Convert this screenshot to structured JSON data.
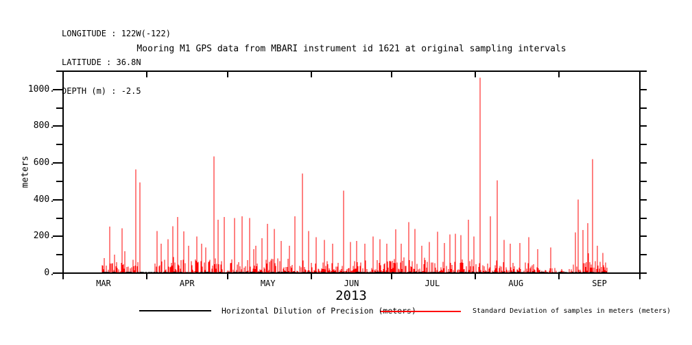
{
  "header": {
    "longitude": "LONGITUDE : 122W(-122)",
    "latitude": "LATITUDE : 36.8N",
    "depth": "DEPTH (m) : -2.5"
  },
  "colors": {
    "background": "#ffffff",
    "axis": "#000000",
    "hdop_series": "#000000",
    "stddev_series": "#ff0000"
  },
  "chart_data": {
    "type": "line",
    "title": "Mooring M1 GPS data from MBARI instrument id 1621 at original sampling intervals",
    "ylabel": "meters",
    "xlabel": "2013",
    "ylim": [
      0,
      1100
    ],
    "grid": false,
    "legend_position": "bottom",
    "y_ticks": [
      {
        "value": 0,
        "label": "0."
      },
      {
        "value": 200,
        "label": "200."
      },
      {
        "value": 400,
        "label": "400."
      },
      {
        "value": 600,
        "label": "600."
      },
      {
        "value": 800,
        "label": "800."
      },
      {
        "value": 1000,
        "label": "1000."
      }
    ],
    "y_minor_step": 100,
    "x_unit": "days since Mar 1 2013",
    "x_domain_days": [
      0,
      214
    ],
    "month_boundaries_days": [
      0,
      31,
      61,
      92,
      122,
      153,
      184,
      214
    ],
    "months": [
      {
        "label": "MAR",
        "mid_day": 15
      },
      {
        "label": "APR",
        "mid_day": 46
      },
      {
        "label": "MAY",
        "mid_day": 76
      },
      {
        "label": "JUN",
        "mid_day": 107
      },
      {
        "label": "JUL",
        "mid_day": 137
      },
      {
        "label": "AUG",
        "mid_day": 168
      },
      {
        "label": "SEP",
        "mid_day": 199
      }
    ],
    "legend": [
      {
        "label": "Horizontal Dilution of Precision (meters)",
        "color": "#000000"
      },
      {
        "label": "Standard Deviation of samples in meters (meters)",
        "color": "#ff0000"
      }
    ],
    "series": [
      {
        "name": "Horizontal Dilution of Precision (meters)",
        "color": "#000000",
        "style": "flat line hugging zero",
        "start_day": 14.3,
        "end_day": 202,
        "typical_value_m": 4
      },
      {
        "name": "Standard Deviation of samples in meters (meters)",
        "color": "#ff0000",
        "style": "dense vertical spikes from zero",
        "start_day": 14.3,
        "end_day": 202,
        "gaps_days": [
          [
            29.2,
            34
          ]
        ],
        "noise": {
          "seed": 20130315,
          "regions": [
            [
              14.3,
              29.2,
              55
            ],
            [
              34,
              60,
              65
            ],
            [
              60,
              100,
              58
            ],
            [
              100,
              122,
              50
            ],
            [
              122,
              154,
              55
            ],
            [
              154,
              172,
              50
            ],
            [
              172,
              178,
              38
            ],
            [
              178,
              188.5,
              20
            ],
            [
              188.5,
              202,
              45
            ]
          ]
        },
        "peaks_day_meters": [
          [
            17.3,
            253
          ],
          [
            19,
            100
          ],
          [
            21.9,
            245
          ],
          [
            23,
            120
          ],
          [
            26.9,
            565
          ],
          [
            28.5,
            495
          ],
          [
            34.9,
            230
          ],
          [
            36.5,
            160
          ],
          [
            38.9,
            185
          ],
          [
            40.6,
            255
          ],
          [
            42.5,
            305
          ],
          [
            44.8,
            227
          ],
          [
            46.5,
            150
          ],
          [
            49.6,
            200
          ],
          [
            51.5,
            160
          ],
          [
            53,
            140
          ],
          [
            55.9,
            635
          ],
          [
            57.5,
            290
          ],
          [
            59.9,
            305
          ],
          [
            63.5,
            300
          ],
          [
            66.3,
            310
          ],
          [
            69.2,
            300
          ],
          [
            71.5,
            150
          ],
          [
            73.8,
            190
          ],
          [
            75.8,
            268
          ],
          [
            78.5,
            240
          ],
          [
            81,
            175
          ],
          [
            84,
            150
          ],
          [
            86,
            310
          ],
          [
            88.8,
            543
          ],
          [
            91,
            230
          ],
          [
            94,
            195
          ],
          [
            97,
            180
          ],
          [
            100,
            160
          ],
          [
            104.2,
            450
          ],
          [
            106.5,
            170
          ],
          [
            109,
            175
          ],
          [
            112,
            160
          ],
          [
            115,
            200
          ],
          [
            117.5,
            185
          ],
          [
            120,
            160
          ],
          [
            123.4,
            238
          ],
          [
            125.5,
            160
          ],
          [
            128.2,
            277
          ],
          [
            130.5,
            240
          ],
          [
            133,
            150
          ],
          [
            136,
            170
          ],
          [
            139,
            225
          ],
          [
            141.5,
            165
          ],
          [
            143.5,
            210
          ],
          [
            145.5,
            215
          ],
          [
            147.6,
            207
          ],
          [
            150.4,
            290
          ],
          [
            152.5,
            200
          ],
          [
            154.7,
            1065
          ],
          [
            158.5,
            310
          ],
          [
            161.1,
            505
          ],
          [
            163.6,
            180
          ],
          [
            166,
            160
          ],
          [
            169.5,
            165
          ],
          [
            172.8,
            196
          ],
          [
            176,
            130
          ],
          [
            181,
            140
          ],
          [
            190,
            222
          ],
          [
            191.2,
            400
          ],
          [
            193,
            235
          ],
          [
            194.7,
            272
          ],
          [
            196.4,
            620
          ],
          [
            198.3,
            150
          ],
          [
            200.3,
            110
          ]
        ]
      }
    ]
  }
}
